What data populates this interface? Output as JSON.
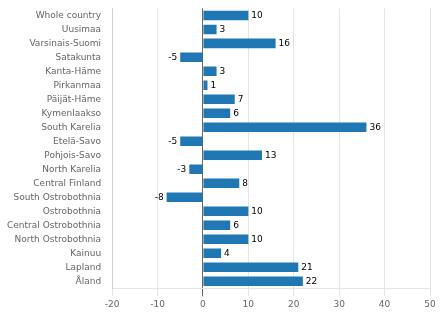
{
  "chart_data": {
    "type": "bar",
    "orientation": "horizontal",
    "categories": [
      "Whole country",
      "Uusimaa",
      "Varsinais-Suomi",
      "Satakunta",
      "Kanta-Häme",
      "Pirkanmaa",
      "Päijät-Häme",
      "Kymenlaakso",
      "South Karelia",
      "Etelä-Savo",
      "Pohjois-Savo",
      "North Karelia",
      "Central Finland",
      "South Ostrobothnia",
      "Ostrobothnia",
      "Central Ostrobothnia",
      "North Ostrobothnia",
      "Kainuu",
      "Lapland",
      "Åland"
    ],
    "values": [
      10,
      3,
      16,
      -5,
      3,
      1,
      7,
      6,
      36,
      -5,
      13,
      -3,
      8,
      -8,
      10,
      6,
      10,
      4,
      21,
      22
    ],
    "color": "#1f77b4",
    "xlim": [
      -20,
      50
    ],
    "xticks": [
      -20,
      -10,
      0,
      10,
      20,
      30,
      40,
      50
    ],
    "grid": true,
    "data_labels": true
  }
}
